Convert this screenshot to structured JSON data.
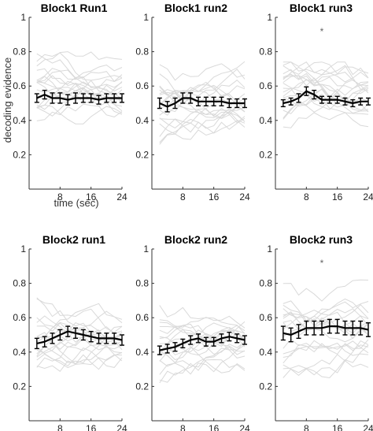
{
  "chart_data": [
    {
      "type": "line",
      "title": "Block1 Run1",
      "xlabel": "time (sec)",
      "ylabel": "decoding evidence",
      "xlim": [
        0,
        24
      ],
      "ylim": [
        0,
        1
      ],
      "xticks": [
        "8",
        "16",
        "24"
      ],
      "yticks": [
        "0.2",
        "0.4",
        "0.6",
        "0.8",
        "1"
      ],
      "grid": false,
      "annotation": "",
      "x": [
        2,
        4,
        6,
        8,
        10,
        12,
        14,
        16,
        18,
        20,
        22,
        24
      ],
      "mean": [
        0.53,
        0.55,
        0.53,
        0.53,
        0.52,
        0.53,
        0.53,
        0.53,
        0.52,
        0.53,
        0.53,
        0.53
      ],
      "sem": [
        0.025,
        0.025,
        0.03,
        0.03,
        0.03,
        0.03,
        0.025,
        0.025,
        0.025,
        0.025,
        0.025,
        0.025
      ],
      "subjects_range": [
        0.38,
        0.8
      ]
    },
    {
      "type": "line",
      "title": "Block1 run2",
      "xlabel": "",
      "ylabel": "",
      "xlim": [
        0,
        24
      ],
      "ylim": [
        0,
        1
      ],
      "xticks": [
        "8",
        "16",
        "24"
      ],
      "yticks": [
        "0.2",
        "0.4",
        "0.6",
        "0.8",
        "1"
      ],
      "grid": false,
      "annotation": "",
      "x": [
        2,
        4,
        6,
        8,
        10,
        12,
        14,
        16,
        18,
        20,
        22,
        24
      ],
      "mean": [
        0.5,
        0.48,
        0.5,
        0.53,
        0.53,
        0.51,
        0.51,
        0.51,
        0.51,
        0.5,
        0.5,
        0.5
      ],
      "sem": [
        0.03,
        0.03,
        0.03,
        0.03,
        0.03,
        0.025,
        0.025,
        0.025,
        0.025,
        0.025,
        0.025,
        0.025
      ],
      "subjects_range": [
        0.26,
        0.76
      ]
    },
    {
      "type": "line",
      "title": "Block1 run3",
      "xlabel": "",
      "ylabel": "",
      "xlim": [
        0,
        24
      ],
      "ylim": [
        0,
        1
      ],
      "xticks": [
        "8",
        "16",
        "24"
      ],
      "yticks": [
        "0.2",
        "0.4",
        "0.6",
        "0.8",
        "1"
      ],
      "grid": false,
      "annotation": "*",
      "x": [
        2,
        4,
        6,
        8,
        10,
        12,
        14,
        16,
        18,
        20,
        22,
        24
      ],
      "mean": [
        0.5,
        0.51,
        0.53,
        0.57,
        0.55,
        0.52,
        0.52,
        0.52,
        0.51,
        0.5,
        0.51,
        0.51
      ],
      "sem": [
        0.02,
        0.02,
        0.025,
        0.025,
        0.025,
        0.02,
        0.02,
        0.02,
        0.02,
        0.02,
        0.02,
        0.02
      ],
      "subjects_range": [
        0.32,
        0.74
      ]
    },
    {
      "type": "line",
      "title": "Block2 run1",
      "xlabel": "",
      "ylabel": "",
      "xlim": [
        0,
        24
      ],
      "ylim": [
        0,
        1
      ],
      "xticks": [
        "8",
        "16",
        "24"
      ],
      "yticks": [
        "0.2",
        "0.4",
        "0.6",
        "0.8",
        "1"
      ],
      "grid": false,
      "annotation": "",
      "x": [
        2,
        4,
        6,
        8,
        10,
        12,
        14,
        16,
        18,
        20,
        22,
        24
      ],
      "mean": [
        0.45,
        0.46,
        0.48,
        0.5,
        0.52,
        0.51,
        0.5,
        0.49,
        0.48,
        0.48,
        0.48,
        0.47
      ],
      "sem": [
        0.03,
        0.03,
        0.03,
        0.03,
        0.03,
        0.03,
        0.03,
        0.03,
        0.03,
        0.03,
        0.03,
        0.03
      ],
      "subjects_range": [
        0.25,
        0.84
      ]
    },
    {
      "type": "line",
      "title": "Block2 run2",
      "xlabel": "",
      "ylabel": "",
      "xlim": [
        0,
        24
      ],
      "ylim": [
        0,
        1
      ],
      "xticks": [
        "8",
        "16",
        "24"
      ],
      "yticks": [
        "0.2",
        "0.4",
        "0.6",
        "0.8",
        "1"
      ],
      "grid": false,
      "annotation": "",
      "x": [
        2,
        4,
        6,
        8,
        10,
        12,
        14,
        16,
        18,
        20,
        22,
        24
      ],
      "mean": [
        0.41,
        0.42,
        0.43,
        0.45,
        0.47,
        0.48,
        0.46,
        0.46,
        0.48,
        0.49,
        0.48,
        0.47
      ],
      "sem": [
        0.025,
        0.025,
        0.025,
        0.025,
        0.025,
        0.025,
        0.025,
        0.025,
        0.025,
        0.025,
        0.025,
        0.025
      ],
      "subjects_range": [
        0.22,
        0.7
      ]
    },
    {
      "type": "line",
      "title": "Block2 run3",
      "xlabel": "",
      "ylabel": "",
      "xlim": [
        0,
        24
      ],
      "ylim": [
        0,
        1
      ],
      "xticks": [
        "8",
        "16",
        "24"
      ],
      "yticks": [
        "0.2",
        "0.4",
        "0.6",
        "0.8",
        "1"
      ],
      "grid": false,
      "annotation": "*",
      "x": [
        2,
        4,
        6,
        8,
        10,
        12,
        14,
        16,
        18,
        20,
        22,
        24
      ],
      "mean": [
        0.51,
        0.5,
        0.52,
        0.54,
        0.54,
        0.54,
        0.55,
        0.55,
        0.54,
        0.54,
        0.54,
        0.53
      ],
      "sem": [
        0.04,
        0.04,
        0.04,
        0.04,
        0.04,
        0.04,
        0.04,
        0.04,
        0.04,
        0.04,
        0.04,
        0.04
      ],
      "subjects_range": [
        0.25,
        0.82
      ]
    }
  ],
  "colors": {
    "mean_line": "#000000",
    "subject_lines": "#d9d9d9",
    "axes": "#333333",
    "significance": "#666666"
  }
}
